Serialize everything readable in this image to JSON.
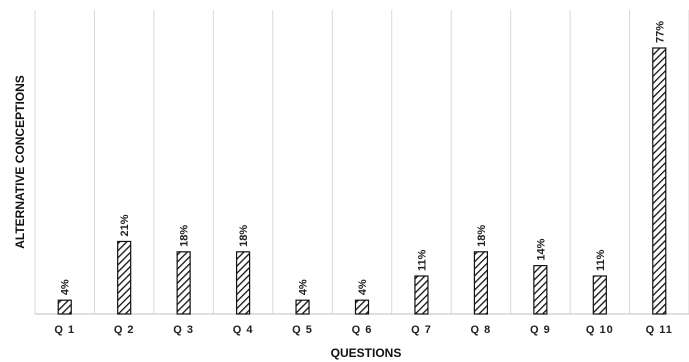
{
  "chart_data": {
    "type": "bar",
    "xlabel": "QUESTIONS",
    "ylabel": "ALTERNATIVE CONCEPTIONS",
    "categories": [
      "Q 1",
      "Q 2",
      "Q 3",
      "Q 4",
      "Q 5",
      "Q 6",
      "Q 7",
      "Q 8",
      "Q 9",
      "Q 10",
      "Q 11"
    ],
    "values": [
      4,
      21,
      18,
      18,
      4,
      4,
      11,
      18,
      14,
      11,
      77
    ],
    "data_labels": [
      "4%",
      "21%",
      "18%",
      "18%",
      "4%",
      "4%",
      "11%",
      "18%",
      "14%",
      "11%",
      "77%"
    ],
    "ylim": [
      0,
      88
    ],
    "grid": "vertical",
    "bar_fill": "diagonal-hatch",
    "colors": {
      "bar": "#111111",
      "grid": "#d9d9d9",
      "axis": "#bfbfbf"
    }
  }
}
